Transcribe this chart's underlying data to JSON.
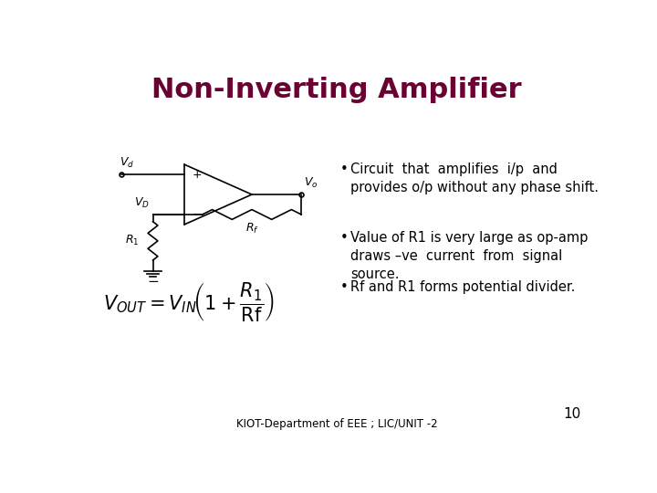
{
  "title": "Non-Inverting Amplifier",
  "title_color": "#6B0033",
  "title_fontsize": 22,
  "bullet1_line1": "Circuit  that  amplifies  i/p  and",
  "bullet1_line2": "provides o/p without any phase shift.",
  "bullet2_line1": "Value of R1 is very large as op-amp",
  "bullet2_line2": "draws –ve  current  from  signal",
  "bullet2_line3": "source.",
  "bullet3": "Rf and R1 forms potential divider.",
  "footer": "KIOT-Department of EEE ; LIC/UNIT -2",
  "page_number": "10",
  "bg_color": "#ffffff",
  "text_color": "#000000"
}
